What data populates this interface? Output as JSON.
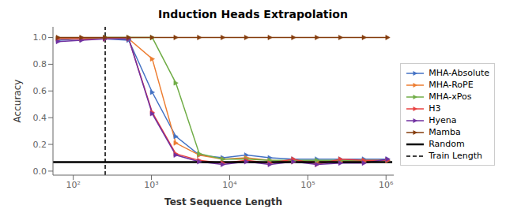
{
  "chart_data": {
    "type": "line",
    "title": "Induction Heads Extrapolation",
    "x_label": "Test Sequence Length",
    "y_label": "Accuracy",
    "log": "x",
    "grid": false,
    "legend": "right",
    "xlim": [
      55,
      1258925.4117941672
    ],
    "xticks": [
      {
        "value": 100,
        "label": "10²"
      },
      {
        "value": 1000,
        "label": "10³"
      },
      {
        "value": 10000,
        "label": "10⁴"
      },
      {
        "value": 100000,
        "label": "10⁵"
      },
      {
        "value": 1000000,
        "label": "10⁶"
      }
    ],
    "ylim": [
      -0.03,
      1.08
    ],
    "yticks": [
      {
        "value": 0,
        "label": "0.0"
      },
      0.2,
      0.4,
      0.6,
      0.8,
      {
        "value": 1,
        "label": "1.0"
      }
    ],
    "x": [
      64,
      128,
      256,
      512,
      1024,
      2048,
      4096,
      8192,
      16384,
      32768,
      65536,
      131072,
      262144,
      524288,
      1048576
    ],
    "series": [
      {
        "name": "MHA-Absolute",
        "color": "#4472C4",
        "marker": "triangle-right",
        "values": [
          0.98,
          0.99,
          0.99,
          0.98,
          0.59,
          0.26,
          0.12,
          0.1,
          0.12,
          0.1,
          0.09,
          0.09,
          0.09,
          0.09,
          0.09
        ]
      },
      {
        "name": "MHA-RoPE",
        "color": "#ED7D31",
        "marker": "triangle-right",
        "values": [
          0.99,
          0.99,
          0.99,
          0.99,
          0.84,
          0.21,
          0.12,
          0.09,
          0.1,
          0.08,
          0.07,
          0.07,
          0.07,
          0.07,
          0.08
        ]
      },
      {
        "name": "MHA-xPos",
        "color": "#70AD47",
        "marker": "triangle-right",
        "values": [
          0.99,
          0.99,
          1.0,
          1.0,
          1.0,
          0.66,
          0.13,
          0.09,
          0.09,
          0.08,
          0.08,
          0.08,
          0.08,
          0.08,
          0.08
        ]
      },
      {
        "name": "H3",
        "color": "#E84040",
        "marker": "triangle-right",
        "values": [
          0.99,
          0.99,
          0.99,
          0.99,
          0.44,
          0.13,
          0.08,
          0.06,
          0.08,
          0.06,
          0.09,
          0.05,
          0.09,
          0.08,
          0.08
        ]
      },
      {
        "name": "Hyena",
        "color": "#7030A0",
        "marker": "triangle-right",
        "values": [
          0.97,
          0.98,
          0.99,
          0.99,
          0.43,
          0.12,
          0.07,
          0.05,
          0.07,
          0.05,
          0.07,
          0.05,
          0.06,
          0.06,
          0.09
        ]
      },
      {
        "name": "Mamba",
        "color": "#843C0C",
        "marker": "triangle-right",
        "values": [
          1.0,
          1.0,
          1.0,
          1.0,
          1.0,
          1.0,
          1.0,
          1.0,
          1.0,
          1.0,
          1.0,
          1.0,
          1.0,
          1.0,
          1.0
        ]
      },
      {
        "name": "Random",
        "color": "black",
        "x": [
          50,
          1200000
        ],
        "values": [
          0.068,
          0.068
        ]
      },
      {
        "name": "Train Length",
        "type": "vline",
        "color": "black",
        "line_style": "dashed",
        "x": 256
      }
    ]
  }
}
